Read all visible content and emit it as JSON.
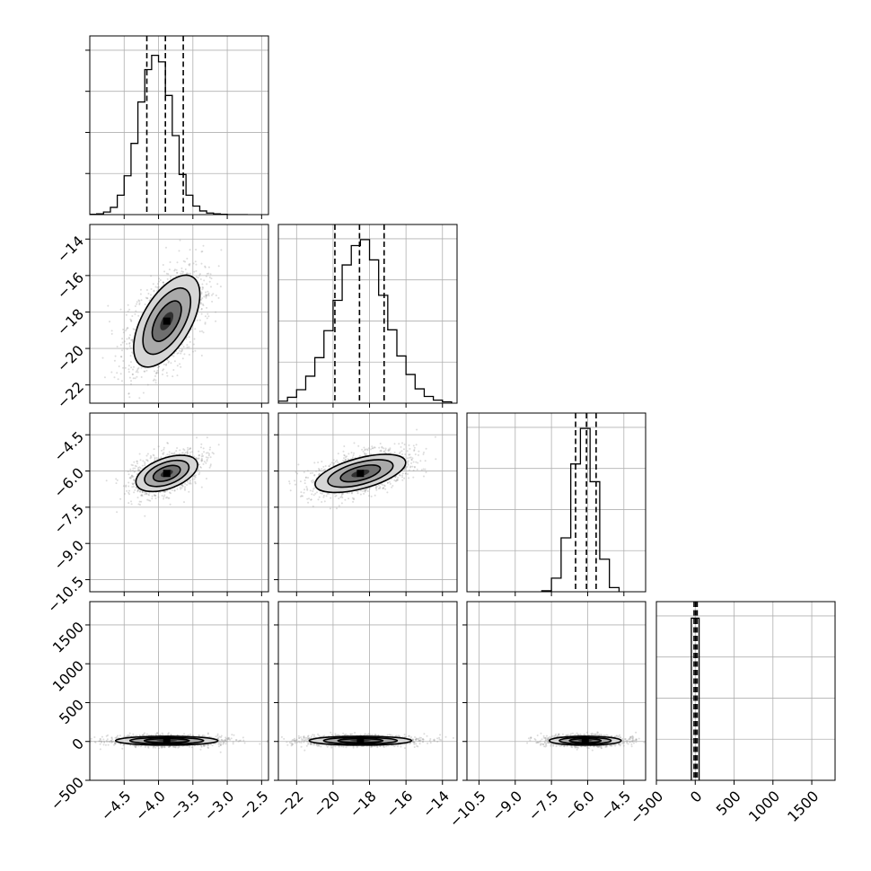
{
  "chart_data": {
    "type": "corner",
    "title": "",
    "grid": true,
    "parameters": [
      {
        "index": 0,
        "range": [
          -5.0,
          -2.4
        ],
        "ticks": [
          -4.5,
          -4.0,
          -3.5,
          -3.0,
          -2.5
        ],
        "tick_labels": [
          "−4.5",
          "−4.0",
          "−3.5",
          "−3.0",
          "−2.5"
        ],
        "median": -3.9,
        "quantiles": [
          -4.17,
          -3.9,
          -3.64
        ]
      },
      {
        "index": 1,
        "range": [
          -23.0,
          -13.2
        ],
        "ticks": [
          -22,
          -20,
          -18,
          -16,
          -14
        ],
        "tick_labels": [
          "−22",
          "−20",
          "−18",
          "−16",
          "−14"
        ],
        "median": -18.55,
        "quantiles": [
          -19.9,
          -18.55,
          -17.2
        ]
      },
      {
        "index": 2,
        "range": [
          -11.0,
          -3.6
        ],
        "ticks": [
          -10.5,
          -9.0,
          -7.5,
          -6.0,
          -4.5
        ],
        "tick_labels": [
          "−10.5",
          "−9.0",
          "−7.5",
          "−6.0",
          "−4.5"
        ],
        "median": -6.05,
        "quantiles": [
          -6.5,
          -6.05,
          -5.65
        ]
      },
      {
        "index": 3,
        "range": [
          -500,
          1800
        ],
        "ticks": [
          -500,
          0,
          500,
          1000,
          1500
        ],
        "tick_labels": [
          "−500",
          "0",
          "500",
          "1000",
          "1500"
        ],
        "median": 5,
        "quantiles": [
          -15,
          5,
          25
        ]
      }
    ],
    "histograms": [
      {
        "param": 0,
        "bins": [
          -5.0,
          -4.9,
          -4.8,
          -4.7,
          -4.6,
          -4.5,
          -4.4,
          -4.3,
          -4.2,
          -4.1,
          -4.0,
          -3.9,
          -3.8,
          -3.7,
          -3.6,
          -3.5,
          -3.4,
          -3.3,
          -3.2,
          -3.1,
          -3.0,
          -2.9,
          -2.8,
          -2.7
        ],
        "counts": [
          1,
          3,
          10,
          28,
          75,
          150,
          275,
          435,
          560,
          615,
          590,
          460,
          305,
          155,
          75,
          33,
          14,
          6,
          3,
          1,
          0,
          0,
          0
        ],
        "ymax": 690
      },
      {
        "param": 1,
        "bins": [
          -23.0,
          -22.5,
          -22.0,
          -21.5,
          -21.0,
          -20.5,
          -20.0,
          -19.5,
          -19.0,
          -18.5,
          -18.0,
          -17.5,
          -17.0,
          -16.5,
          -16.0,
          -15.5,
          -15.0,
          -14.5,
          -14.0,
          -13.5
        ],
        "counts": [
          12,
          35,
          80,
          160,
          270,
          430,
          610,
          820,
          935,
          970,
          850,
          640,
          435,
          280,
          170,
          85,
          40,
          18,
          8
        ],
        "ymax": 1060
      },
      {
        "param": 2,
        "bins": [
          -7.9,
          -7.5,
          -7.1,
          -6.7,
          -6.3,
          -5.9,
          -5.5,
          -5.1,
          -4.7
        ],
        "counts": [
          8,
          115,
          455,
          1080,
          1380,
          930,
          275,
          35
        ],
        "ymax": 1510
      },
      {
        "param": 3,
        "bins": [
          -50,
          0,
          50
        ],
        "counts": [
          4900,
          4900
        ],
        "ymax": 5400
      }
    ],
    "pairs": [
      {
        "x": 0,
        "y": 1,
        "center": [
          -3.88,
          -18.5
        ],
        "correlation": "positive"
      },
      {
        "x": 0,
        "y": 2,
        "center": [
          -3.88,
          -6.1
        ],
        "correlation": "positive"
      },
      {
        "x": 1,
        "y": 2,
        "center": [
          -18.5,
          -6.1
        ],
        "correlation": "positive"
      },
      {
        "x": 0,
        "y": 3,
        "center": [
          -3.88,
          10
        ],
        "correlation": "none"
      },
      {
        "x": 1,
        "y": 3,
        "center": [
          -18.5,
          10
        ],
        "correlation": "none"
      },
      {
        "x": 2,
        "y": 3,
        "center": [
          -6.1,
          10
        ],
        "correlation": "none"
      }
    ]
  }
}
